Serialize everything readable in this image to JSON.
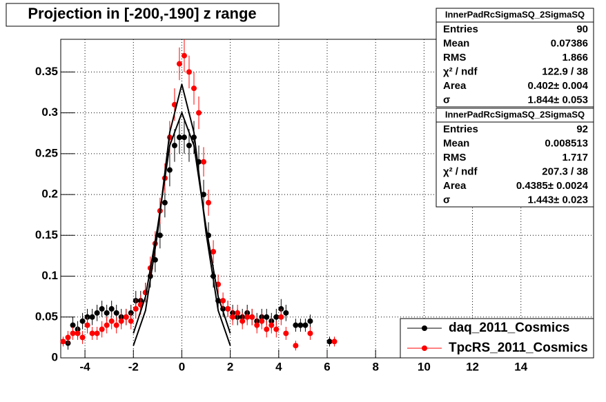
{
  "chart_data": {
    "type": "scatter",
    "title": "Projection in [-200,-190] z range",
    "xlim": [
      -5,
      17
    ],
    "ylim": [
      0,
      0.39
    ],
    "xticks": [
      -4,
      -2,
      0,
      2,
      4,
      6,
      8,
      10,
      12,
      14
    ],
    "yticks": [
      0,
      0.05,
      0.1,
      0.15,
      0.2,
      0.25,
      0.3,
      0.35
    ],
    "grid": true,
    "legend": "lower right",
    "series": [
      {
        "name": "daq_2011_Cosmics",
        "color": "#000000",
        "x": [
          -4.7,
          -4.5,
          -4.3,
          -4.1,
          -3.9,
          -3.7,
          -3.5,
          -3.3,
          -3.1,
          -2.9,
          -2.7,
          -2.5,
          -2.3,
          -2.1,
          -1.9,
          -1.7,
          -1.5,
          -1.3,
          -1.1,
          -0.9,
          -0.7,
          -0.5,
          -0.3,
          -0.1,
          0.1,
          0.3,
          0.5,
          0.7,
          0.9,
          1.1,
          1.3,
          1.5,
          1.7,
          1.9,
          2.1,
          2.3,
          2.5,
          2.7,
          2.9,
          3.1,
          3.3,
          3.5,
          3.7,
          3.9,
          4.1,
          4.3,
          4.7,
          4.9,
          5.1,
          5.3,
          6.1
        ],
        "values": [
          0.018,
          0.04,
          0.035,
          0.045,
          0.05,
          0.05,
          0.055,
          0.06,
          0.055,
          0.06,
          0.055,
          0.05,
          0.05,
          0.055,
          0.07,
          0.07,
          0.08,
          0.1,
          0.12,
          0.15,
          0.19,
          0.23,
          0.26,
          0.27,
          0.27,
          0.26,
          0.27,
          0.24,
          0.2,
          0.15,
          0.1,
          0.07,
          0.06,
          0.06,
          0.055,
          0.05,
          0.05,
          0.055,
          0.05,
          0.045,
          0.05,
          0.05,
          0.045,
          0.05,
          0.06,
          0.055,
          0.04,
          0.04,
          0.04,
          0.045,
          0.02
        ],
        "errors": [
          0.008,
          0.01,
          0.01,
          0.01,
          0.01,
          0.01,
          0.01,
          0.01,
          0.01,
          0.01,
          0.01,
          0.01,
          0.01,
          0.01,
          0.012,
          0.012,
          0.012,
          0.014,
          0.015,
          0.016,
          0.018,
          0.02,
          0.02,
          0.02,
          0.02,
          0.02,
          0.02,
          0.02,
          0.018,
          0.016,
          0.014,
          0.012,
          0.01,
          0.01,
          0.01,
          0.01,
          0.01,
          0.01,
          0.01,
          0.01,
          0.01,
          0.01,
          0.01,
          0.01,
          0.012,
          0.01,
          0.008,
          0.008,
          0.008,
          0.008,
          0.006
        ]
      },
      {
        "name": "TpcRS_2011_Cosmics",
        "color": "#ff0000",
        "x": [
          -4.9,
          -4.7,
          -4.5,
          -4.3,
          -4.1,
          -3.9,
          -3.7,
          -3.5,
          -3.3,
          -3.1,
          -2.9,
          -2.7,
          -2.5,
          -2.3,
          -2.1,
          -1.9,
          -1.7,
          -1.5,
          -1.3,
          -1.1,
          -0.9,
          -0.7,
          -0.5,
          -0.3,
          -0.1,
          0.1,
          0.3,
          0.5,
          0.7,
          0.9,
          1.1,
          1.3,
          1.5,
          1.7,
          1.9,
          2.1,
          2.3,
          2.5,
          2.7,
          2.9,
          3.1,
          3.3,
          3.5,
          3.7,
          3.9,
          4.1,
          4.3,
          4.7,
          5.3,
          6.3
        ],
        "values": [
          0.02,
          0.025,
          0.03,
          0.03,
          0.025,
          0.04,
          0.03,
          0.03,
          0.035,
          0.04,
          0.045,
          0.04,
          0.045,
          0.05,
          0.045,
          0.06,
          0.065,
          0.08,
          0.11,
          0.14,
          0.18,
          0.22,
          0.27,
          0.31,
          0.36,
          0.37,
          0.35,
          0.33,
          0.3,
          0.24,
          0.19,
          0.13,
          0.09,
          0.07,
          0.06,
          0.05,
          0.055,
          0.045,
          0.05,
          0.05,
          0.04,
          0.045,
          0.035,
          0.04,
          0.035,
          0.05,
          0.03,
          0.015,
          0.03,
          0.02
        ],
        "errors": [
          0.006,
          0.008,
          0.008,
          0.008,
          0.008,
          0.01,
          0.008,
          0.008,
          0.01,
          0.01,
          0.01,
          0.01,
          0.01,
          0.01,
          0.01,
          0.012,
          0.012,
          0.012,
          0.014,
          0.015,
          0.016,
          0.018,
          0.02,
          0.02,
          0.02,
          0.02,
          0.02,
          0.02,
          0.02,
          0.018,
          0.016,
          0.014,
          0.012,
          0.01,
          0.01,
          0.01,
          0.01,
          0.01,
          0.01,
          0.01,
          0.01,
          0.01,
          0.01,
          0.01,
          0.01,
          0.01,
          0.008,
          0.006,
          0.008,
          0.006
        ]
      }
    ],
    "fits": [
      {
        "color": "#000000",
        "x": [
          -2,
          -1.5,
          -1,
          -0.5,
          0,
          0.5,
          1,
          1.5,
          2
        ],
        "values": [
          0.015,
          0.058,
          0.153,
          0.276,
          0.335,
          0.276,
          0.153,
          0.058,
          0.015
        ]
      },
      {
        "color": "#000000",
        "x": [
          -2,
          -1.5,
          -1,
          -0.5,
          0,
          0.5,
          1,
          1.5,
          2
        ],
        "values": [
          0.03,
          0.075,
          0.16,
          0.26,
          0.3,
          0.26,
          0.16,
          0.075,
          0.03
        ]
      }
    ],
    "stats": [
      {
        "title": "InnerPadRcSigmaSQ_2SigmaSQ",
        "rows": [
          [
            "Entries",
            "90"
          ],
          [
            "Mean",
            "0.07386"
          ],
          [
            "RMS",
            "1.866"
          ],
          [
            "χ² / ndf",
            "122.9 / 38"
          ],
          [
            "Area",
            "0.402± 0.004"
          ],
          [
            "σ",
            "1.844± 0.053"
          ]
        ]
      },
      {
        "title": "InnerPadRcSigmaSQ_2SigmaSQ",
        "rows": [
          [
            "Entries",
            "92"
          ],
          [
            "Mean",
            "0.008513"
          ],
          [
            "RMS",
            "1.717"
          ],
          [
            "χ² / ndf",
            "207.3 / 38"
          ],
          [
            "Area",
            "0.4385± 0.0024"
          ],
          [
            "σ",
            "1.443± 0.023"
          ]
        ]
      }
    ]
  }
}
